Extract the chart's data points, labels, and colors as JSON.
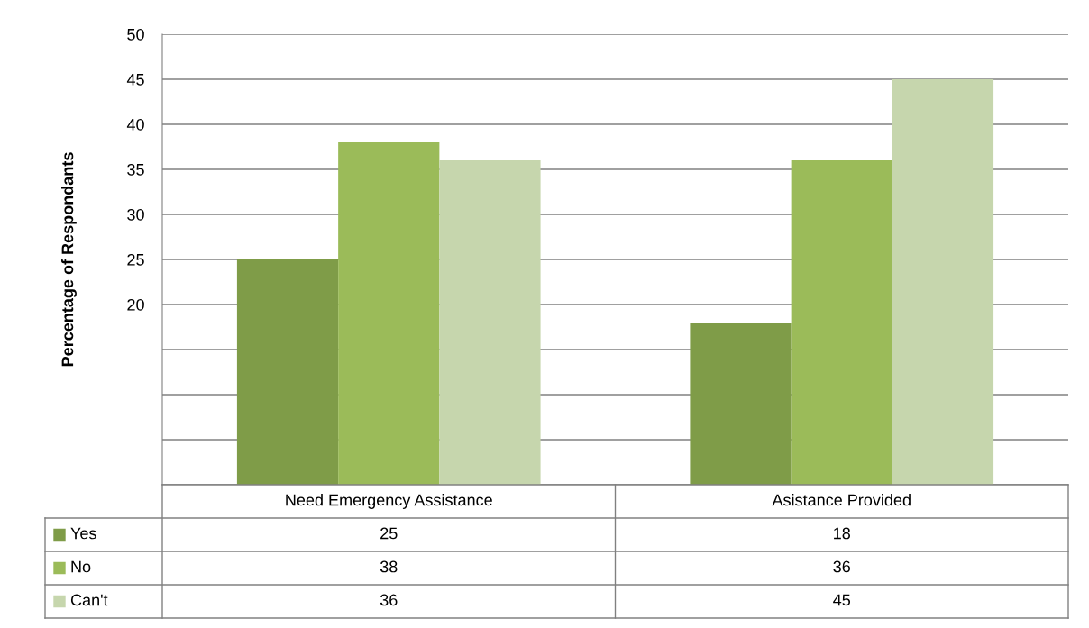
{
  "chart_data": {
    "type": "bar",
    "ylabel": "Percentage of Respondants",
    "categories": [
      "Need Emergency Assistance",
      "Asistance Provided"
    ],
    "series": [
      {
        "name": "Yes",
        "color": "#7f9c48",
        "values": [
          25,
          18
        ]
      },
      {
        "name": "No",
        "color": "#9bbb59",
        "values": [
          38,
          36
        ]
      },
      {
        "name": "Can't",
        "color": "#c6d6ad",
        "values": [
          36,
          45
        ]
      }
    ],
    "ylim": [
      0,
      50
    ],
    "yticks": [
      {
        "value": 0,
        "label": null
      },
      {
        "value": 5,
        "label": null
      },
      {
        "value": 10,
        "label": null
      },
      {
        "value": 15,
        "label": null
      },
      20,
      25,
      30,
      35,
      40,
      45,
      50
    ],
    "grid": "y",
    "legend": "bottom",
    "data_labels": true
  }
}
